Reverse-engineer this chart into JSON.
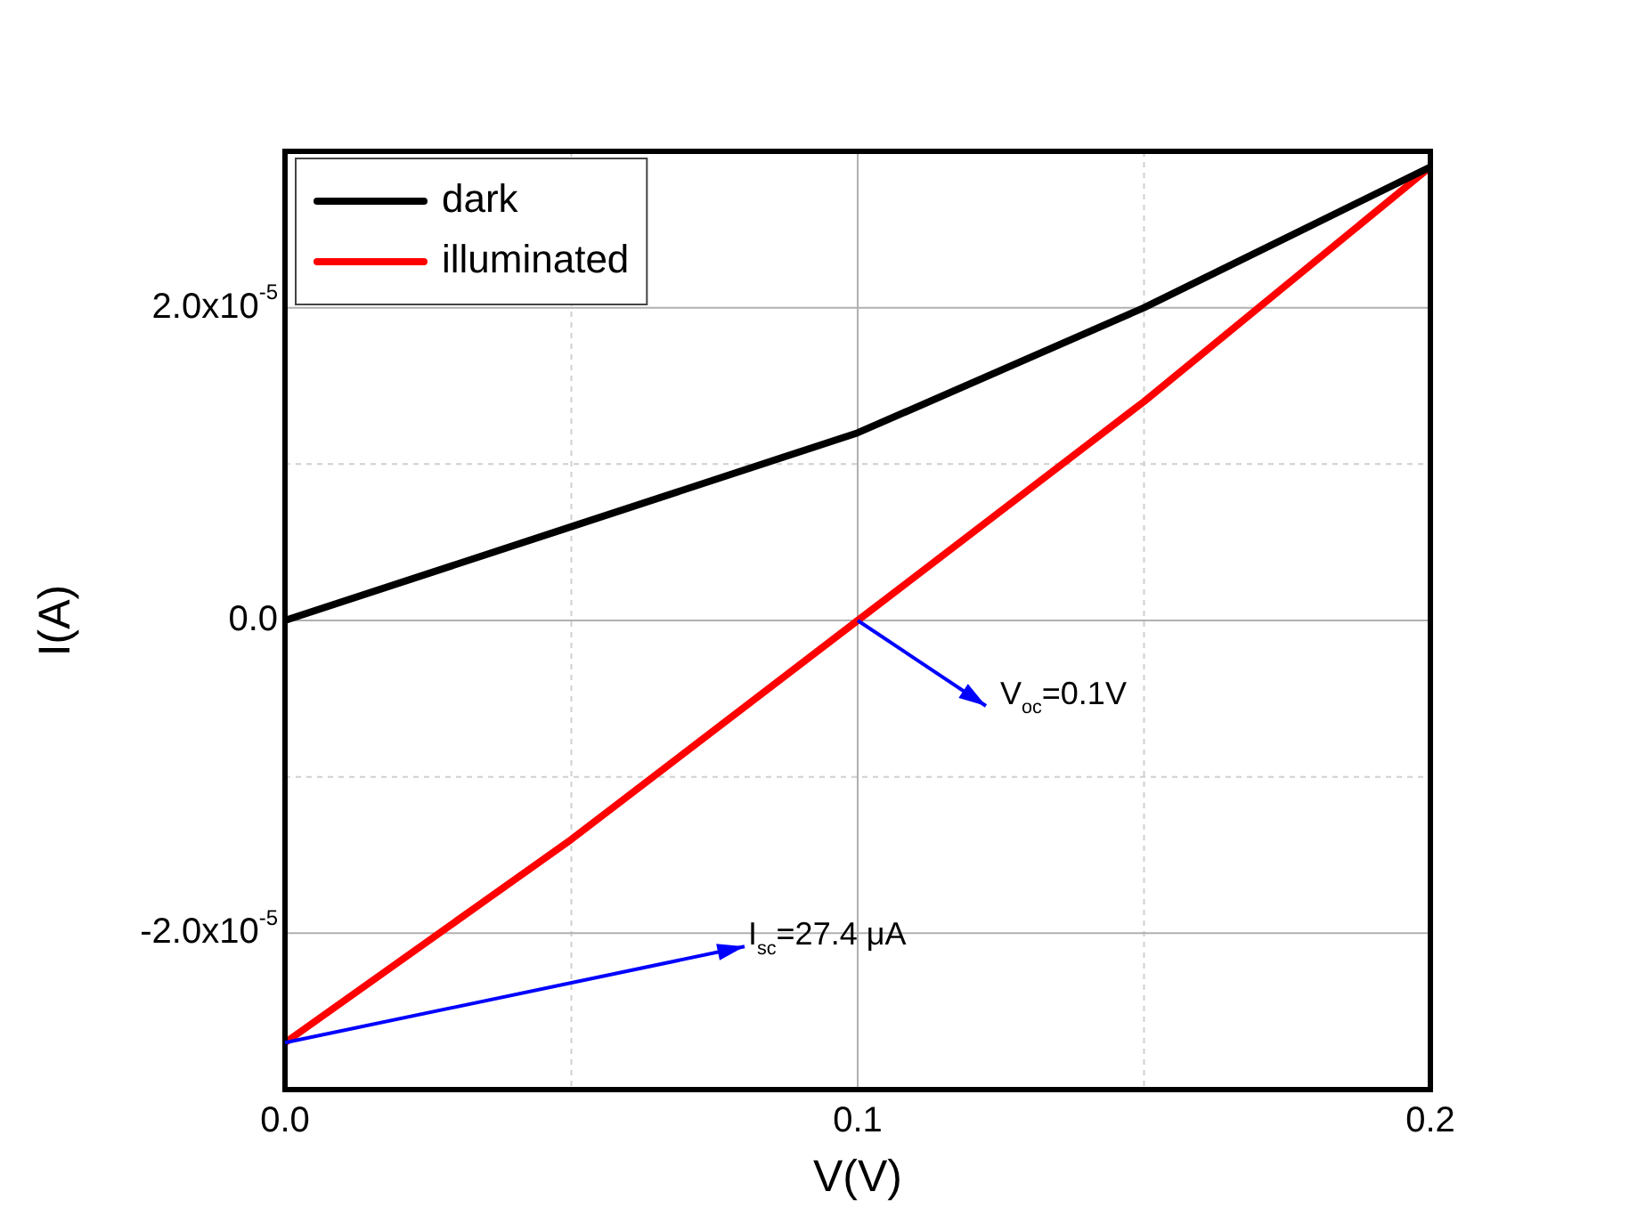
{
  "chart_data": {
    "type": "line",
    "xlabel": "V(V)",
    "ylabel": "I(A)",
    "x": [
      0,
      0.05,
      0.1,
      0.15,
      0.2
    ],
    "series": [
      {
        "name": "dark",
        "color": "#000000",
        "values": [
          0,
          6e-06,
          1.2e-05,
          2e-05,
          2.9e-05
        ]
      },
      {
        "name": "illuminated",
        "color": "#ff0000",
        "values": [
          -2.7e-05,
          -1.4e-05,
          0,
          1.4e-05,
          2.9e-05
        ]
      }
    ],
    "xlim": [
      0,
      0.2
    ],
    "ylim": [
      -3e-05,
      3e-05
    ],
    "xticks": [
      {
        "value": 0,
        "label": "0.0"
      },
      {
        "value": 0.05,
        "label": null
      },
      {
        "value": 0.1,
        "label": "0.1"
      },
      {
        "value": 0.15,
        "label": null
      },
      {
        "value": 0.2,
        "label": "0.2"
      }
    ],
    "yticks": [
      {
        "value": -2e-05,
        "label": "-2.0x10$^{-5}$"
      },
      {
        "value": -1e-05,
        "label": null
      },
      {
        "value": 0,
        "label": "0.0"
      },
      {
        "value": 1e-05,
        "label": null
      },
      {
        "value": 2e-05,
        "label": "2.0x10$^{-5}$"
      }
    ],
    "grid": true,
    "legend": "top left",
    "marker": "none",
    "line_style": "solid",
    "annotations": [
      {
        "text": "V$_{oc}$=0.1V",
        "x": 0.1,
        "y": 0
      },
      {
        "text": "I$_{sc}$=27.4 μA",
        "x": 0,
        "y": -2.7e-05
      }
    ]
  }
}
